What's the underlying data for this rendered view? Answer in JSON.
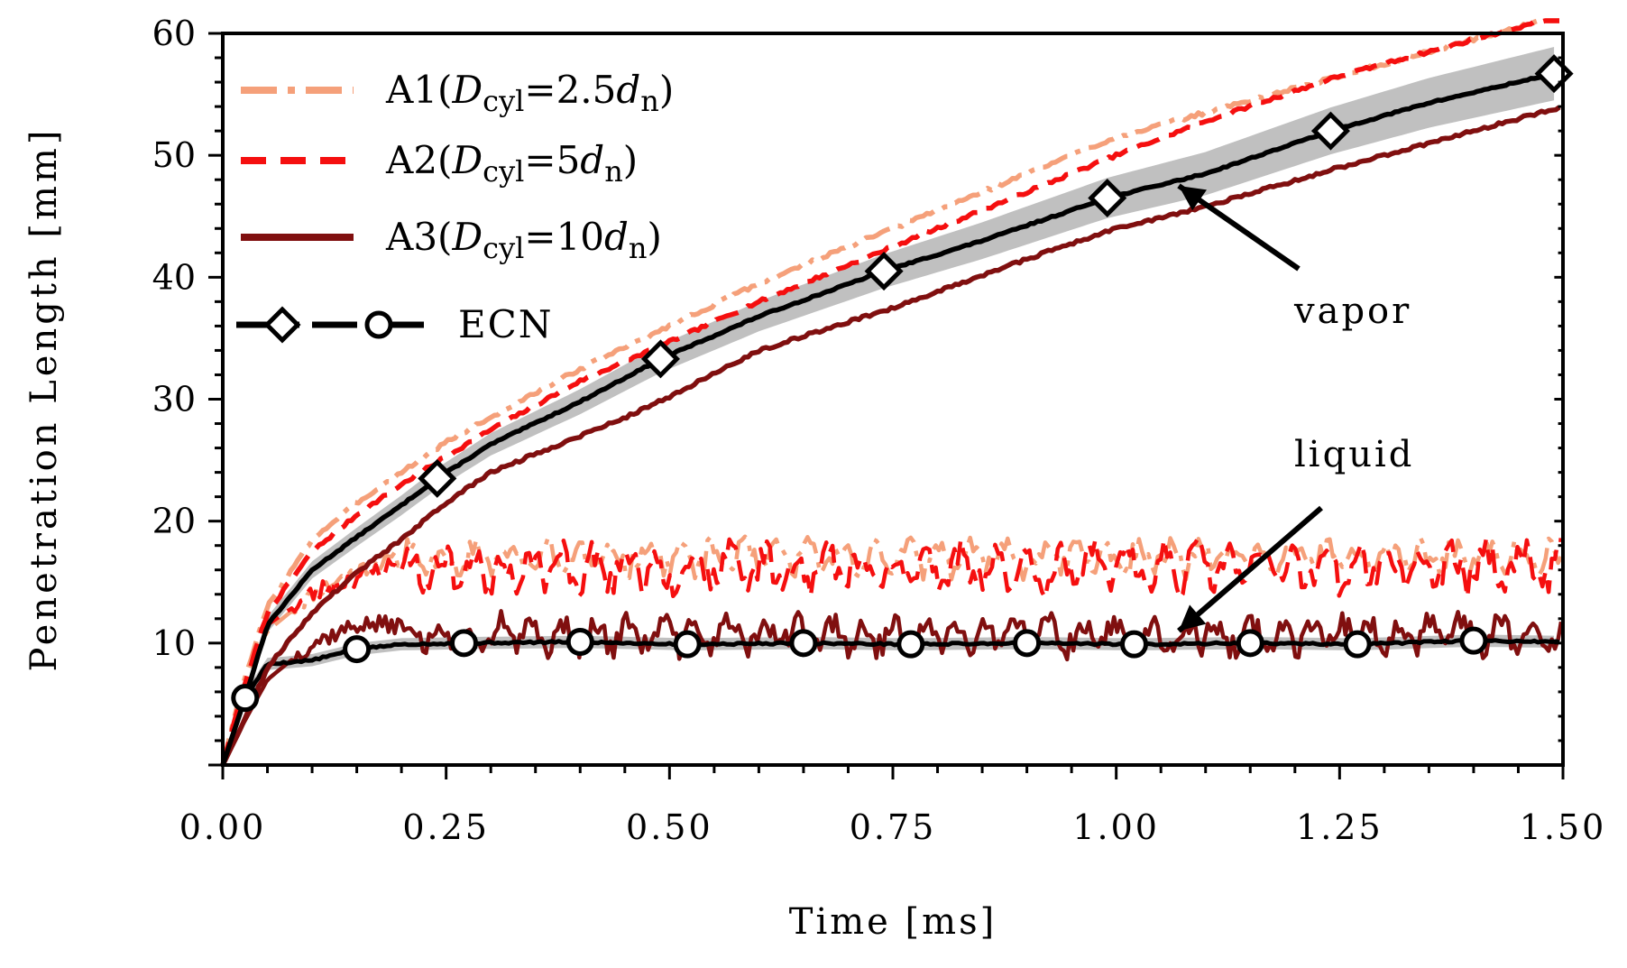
{
  "chart_data": {
    "type": "line",
    "xlabel": "Time [ms]",
    "ylabel": "Penetration Length [mm]",
    "xlim": [
      0,
      1.5
    ],
    "ylim": [
      0,
      60
    ],
    "xticks": [
      "0.00",
      "0.25",
      "0.50",
      "0.75",
      "1.00",
      "1.25",
      "1.50"
    ],
    "yticks": [
      "10",
      "20",
      "30",
      "40",
      "50",
      "60"
    ],
    "grid": false,
    "legend_position": "top-left",
    "legend": [
      {
        "id": "A1",
        "prefix": "A1(",
        "sym": "D",
        "sub": "cyl",
        "eq": "=2.5",
        "dsym": "d",
        "dsub": "n",
        "close": ")",
        "color": "#f5a07a",
        "style": "dashdot"
      },
      {
        "id": "A2",
        "prefix": "A2(",
        "sym": "D",
        "sub": "cyl",
        "eq": "=5",
        "dsym": "d",
        "dsub": "n",
        "close": ")",
        "color": "#f50f0f",
        "style": "dashed"
      },
      {
        "id": "A3",
        "prefix": "A3(",
        "sym": "D",
        "sub": "cyl",
        "eq": "=10",
        "dsym": "d",
        "dsub": "n",
        "close": ")",
        "color": "#800f0f",
        "style": "solid"
      },
      {
        "id": "ECN",
        "label": "ECN",
        "color": "#000000",
        "style": "markers"
      }
    ],
    "annotations": [
      {
        "text": "vapor",
        "arrow_to": [
          1.07,
          47.5
        ]
      },
      {
        "text": "liquid",
        "arrow_to": [
          1.07,
          11.0
        ]
      }
    ],
    "series": [
      {
        "name": "A1 vapor",
        "color": "#f5a07a",
        "x": [
          0,
          0.02,
          0.05,
          0.1,
          0.15,
          0.2,
          0.25,
          0.3,
          0.4,
          0.5,
          0.6,
          0.75,
          0.9,
          1.0,
          1.1,
          1.25,
          1.4,
          1.5
        ],
        "y": [
          0,
          6,
          13,
          18.5,
          21.5,
          24,
          26.5,
          28.5,
          32.5,
          36,
          39.5,
          44,
          48.5,
          51.5,
          53.5,
          56.5,
          59.5,
          61.5
        ]
      },
      {
        "name": "A2 vapor",
        "color": "#f50f0f",
        "x": [
          0,
          0.02,
          0.05,
          0.1,
          0.15,
          0.2,
          0.25,
          0.3,
          0.4,
          0.5,
          0.6,
          0.75,
          0.9,
          1.0,
          1.1,
          1.25,
          1.4,
          1.5
        ],
        "y": [
          0,
          5.5,
          12.5,
          17.5,
          20.5,
          23,
          25.3,
          27.5,
          31.5,
          34.7,
          38,
          42.5,
          47,
          50,
          52.8,
          56.5,
          59.5,
          61.5
        ]
      },
      {
        "name": "A3 vapor",
        "color": "#800f0f",
        "x": [
          0,
          0.02,
          0.05,
          0.1,
          0.15,
          0.2,
          0.25,
          0.3,
          0.4,
          0.45,
          0.5,
          0.6,
          0.75,
          0.9,
          1.0,
          1.1,
          1.25,
          1.4,
          1.5
        ],
        "y": [
          0,
          3,
          8,
          12.5,
          15.8,
          18.5,
          21.5,
          24,
          27,
          28.5,
          30.2,
          34,
          37.5,
          41.5,
          44,
          45.8,
          49,
          52,
          54
        ]
      },
      {
        "name": "ECN vapor",
        "color": "#000000",
        "x": [
          0,
          0.025,
          0.05,
          0.1,
          0.15,
          0.2,
          0.24,
          0.3,
          0.4,
          0.49,
          0.6,
          0.74,
          0.85,
          0.99,
          1.1,
          1.24,
          1.35,
          1.49,
          1.5
        ],
        "y": [
          0,
          5.5,
          11.5,
          16,
          18.7,
          21.3,
          23.5,
          26.3,
          29.8,
          33.3,
          36.8,
          40.5,
          43,
          46.5,
          48.5,
          52,
          54.3,
          56.7,
          57
        ]
      },
      {
        "name": "ECN vapor band",
        "color": "#c0c0c0"
      },
      {
        "name": "A1 liquid",
        "color": "#f5a07a",
        "base": 17.0,
        "amp": 1.6,
        "seed": 11,
        "x": [
          0,
          0.02,
          0.05,
          0.1,
          0.15,
          0.2
        ],
        "y": [
          0,
          6,
          11,
          14,
          16,
          17
        ]
      },
      {
        "name": "A2 liquid",
        "color": "#f50f0f",
        "base": 16.2,
        "amp": 2.2,
        "seed": 23,
        "x": [
          0,
          0.02,
          0.05,
          0.1,
          0.15,
          0.2
        ],
        "y": [
          0,
          5.5,
          11.5,
          14,
          15.5,
          16.5
        ]
      },
      {
        "name": "A3 liquid",
        "color": "#800f0f",
        "base": 10.7,
        "amp": 1.8,
        "seed": 37,
        "x": [
          0,
          0.02,
          0.05,
          0.1,
          0.15,
          0.2
        ],
        "y": [
          0,
          3,
          7,
          10,
          11.5,
          11.5
        ]
      },
      {
        "name": "ECN liquid",
        "color": "#000000",
        "x": [
          0,
          0.025,
          0.05,
          0.07,
          0.1,
          0.15,
          0.2,
          0.27,
          0.4,
          0.52,
          0.65,
          0.77,
          0.9,
          1.02,
          1.15,
          1.27,
          1.4,
          1.5
        ],
        "y": [
          0,
          5.5,
          8.3,
          8.4,
          8.6,
          9.5,
          9.9,
          10.0,
          10.1,
          9.9,
          10.0,
          9.9,
          10.0,
          9.9,
          10.0,
          9.9,
          10.2,
          10.1
        ]
      }
    ],
    "markers": {
      "ecn_vapor_diamonds": {
        "x": [
          0.24,
          0.49,
          0.74,
          0.99,
          1.24,
          1.49
        ],
        "y": [
          23.5,
          33.3,
          40.5,
          46.5,
          52,
          56.7
        ]
      },
      "ecn_liquid_circles": {
        "x": [
          0.025,
          0.15,
          0.27,
          0.4,
          0.52,
          0.65,
          0.77,
          0.9,
          1.02,
          1.15,
          1.27,
          1.4
        ],
        "y": [
          5.5,
          9.5,
          10.0,
          10.1,
          9.9,
          10.0,
          9.9,
          10.0,
          9.9,
          10.0,
          9.9,
          10.2
        ]
      }
    }
  }
}
